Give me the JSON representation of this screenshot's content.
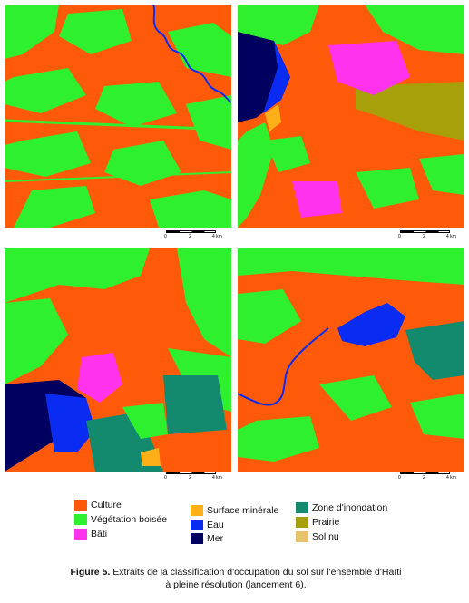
{
  "maps": [
    {
      "scale": {
        "ticks": [
          "0",
          "2",
          "4 km"
        ]
      }
    },
    {
      "scale": {
        "ticks": [
          "0",
          "2",
          "4 km"
        ]
      }
    },
    {
      "scale": {
        "ticks": [
          "0",
          "2",
          "4 km"
        ]
      }
    },
    {
      "scale": {
        "ticks": [
          "0",
          "2",
          "4 km"
        ]
      }
    }
  ],
  "legend": [
    {
      "label": "Culture",
      "color": "#ff5a0a"
    },
    {
      "label": "Végétation boisée",
      "color": "#2ef02e"
    },
    {
      "label": "Bâti",
      "color": "#ff33ee"
    },
    {
      "label": "Surface minérale",
      "color": "#ffb019"
    },
    {
      "label": "Eau",
      "color": "#0a2cf2"
    },
    {
      "label": "Mer",
      "color": "#00005e"
    },
    {
      "label": "Zone d'inondation",
      "color": "#138a6e"
    },
    {
      "label": "Prairie",
      "color": "#a8a00a"
    },
    {
      "label": "Sol nu",
      "color": "#e8c26a"
    }
  ],
  "caption": {
    "prefix": "Figure 5.",
    "line1": " Extraits de la classification d'occupation du sol sur l'ensemble d'Haïti",
    "line2": "à pleine résolution (lancement 6)."
  }
}
